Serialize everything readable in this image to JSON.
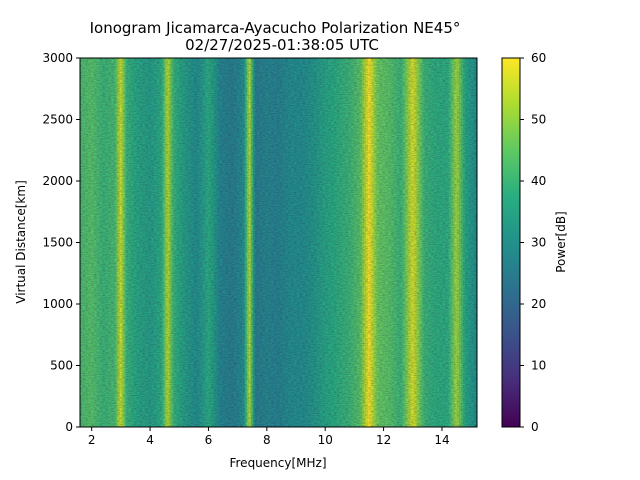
{
  "chart_data": {
    "type": "heatmap",
    "title": "Ionogram Jicamarca-Ayacucho Polarization NE45°",
    "subtitle": "02/27/2025-01:38:05 UTC",
    "xlabel": "Frequency[MHz]",
    "ylabel": "Virtual Distance[km]",
    "xlim": [
      1.6,
      15.2
    ],
    "ylim": [
      0,
      3000
    ],
    "x_ticks": [
      2,
      4,
      6,
      8,
      10,
      12,
      14
    ],
    "y_ticks": [
      0,
      500,
      1000,
      1500,
      2000,
      2500,
      3000
    ],
    "grid": false,
    "colorbar": {
      "label": "Power[dB]",
      "range": [
        0,
        60
      ],
      "ticks": [
        0,
        10,
        20,
        30,
        40,
        50,
        60
      ],
      "colormap": "viridis"
    },
    "column_power_profile": {
      "frequency_mhz": [
        1.6,
        2.0,
        2.4,
        2.8,
        3.0,
        3.2,
        3.6,
        4.0,
        4.4,
        4.6,
        4.8,
        5.2,
        5.6,
        6.0,
        6.4,
        6.8,
        7.2,
        7.4,
        7.6,
        8.0,
        8.4,
        8.8,
        9.2,
        9.6,
        10.0,
        10.4,
        10.8,
        11.2,
        11.5,
        11.8,
        12.2,
        12.6,
        13.0,
        13.4,
        13.8,
        14.2,
        14.5,
        14.8,
        15.2
      ],
      "power_db": [
        42,
        44,
        40,
        42,
        56,
        40,
        36,
        34,
        38,
        54,
        40,
        34,
        30,
        38,
        28,
        26,
        30,
        55,
        26,
        28,
        27,
        30,
        30,
        32,
        36,
        38,
        40,
        44,
        60,
        46,
        44,
        40,
        57,
        40,
        38,
        38,
        52,
        36,
        30
      ]
    }
  }
}
